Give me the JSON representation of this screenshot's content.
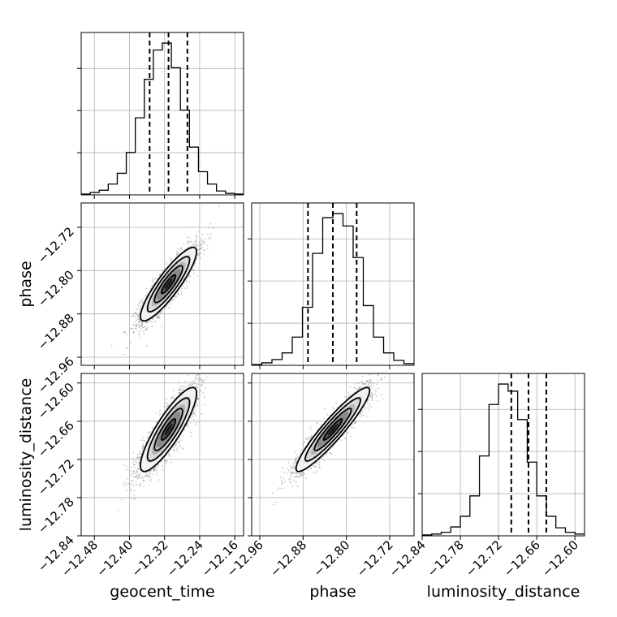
{
  "chart_data": {
    "type": "corner",
    "parameters": [
      "geocent_time",
      "phase",
      "luminosity_distance"
    ],
    "axes": {
      "geocent_time": {
        "label": "geocent_time",
        "range": [
          -12.51,
          -12.14
        ],
        "ticks": [
          -12.48,
          -12.4,
          -12.32,
          -12.24,
          -12.16
        ],
        "tick_labels": [
          "−12.48",
          "−12.40",
          "−12.32",
          "−12.24",
          "−12.16"
        ]
      },
      "phase": {
        "label": "phase",
        "range": [
          -12.975,
          -12.675
        ],
        "ticks": [
          -12.96,
          -12.88,
          -12.8,
          -12.72
        ],
        "tick_labels": [
          "−12.96",
          "−12.88",
          "−12.80",
          "−12.72"
        ]
      },
      "luminosity_distance": {
        "label": "luminosity_distance",
        "range": [
          -12.84,
          -12.585
        ],
        "ticks": [
          -12.84,
          -12.78,
          -12.72,
          -12.66,
          -12.6
        ],
        "tick_labels": [
          "−12.84",
          "−12.78",
          "−12.72",
          "−12.66",
          "−12.60"
        ]
      }
    },
    "histograms": {
      "geocent_time": {
        "counts": [
          1,
          3,
          6,
          14,
          28,
          55,
          100,
          150,
          188,
          197,
          165,
          110,
          62,
          30,
          14,
          5,
          2,
          1
        ],
        "quantiles": [
          -12.354,
          -12.311,
          -12.268
        ]
      },
      "phase": {
        "counts": [
          1,
          3,
          7,
          15,
          34,
          70,
          135,
          178,
          183,
          168,
          130,
          72,
          34,
          15,
          6,
          2
        ],
        "quantiles": [
          -12.871,
          -12.825,
          -12.781
        ]
      },
      "luminosity_distance": {
        "counts": [
          1,
          2,
          4,
          10,
          22,
          45,
          90,
          148,
          171,
          163,
          131,
          83,
          45,
          22,
          9,
          4,
          2
        ],
        "quantiles": [
          -12.7,
          -12.673,
          -12.645
        ]
      }
    },
    "pairs": [
      {
        "x": "geocent_time",
        "y": "phase",
        "center": [
          -12.311,
          -12.825
        ],
        "sd": [
          0.032,
          0.034
        ],
        "corr": 0.88
      },
      {
        "x": "geocent_time",
        "y": "luminosity_distance",
        "center": [
          -12.311,
          -12.673
        ],
        "sd": [
          0.032,
          0.033
        ],
        "corr": 0.86
      },
      {
        "x": "phase",
        "y": "luminosity_distance",
        "center": [
          -12.825,
          -12.673
        ],
        "sd": [
          0.034,
          0.033
        ],
        "corr": 0.93
      }
    ],
    "contour_levels_sigma": [
      0.5,
      1.0,
      1.5,
      2.0
    ],
    "grid": true
  }
}
